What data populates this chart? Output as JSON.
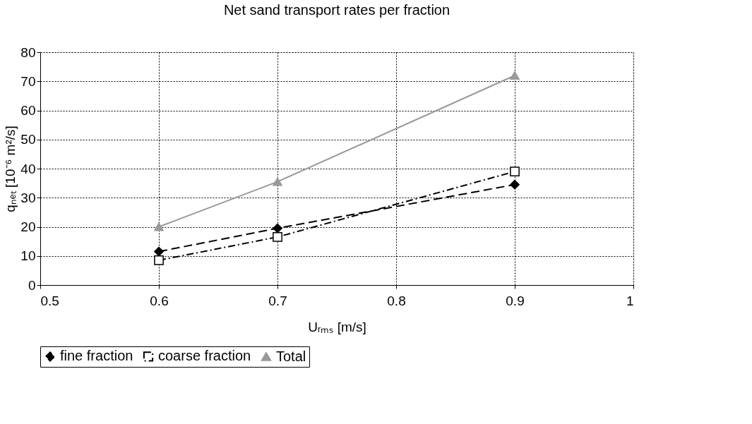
{
  "chart_data": {
    "type": "line",
    "title": "Net sand transport rates per fraction",
    "xlabel": "Uᵣₘₛ [m/s]",
    "ylabel": "qₙₑₜ [10⁻⁶ m²/s]",
    "x": [
      0.6,
      0.7,
      0.9
    ],
    "series": [
      {
        "name": "fine fraction",
        "color": "#000000",
        "values": [
          11.5,
          19.5,
          34.5
        ],
        "marker": "diamond",
        "line_style": "dashed"
      },
      {
        "name": "coarse fraction",
        "color": "#000000",
        "values": [
          8.5,
          16.5,
          39
        ],
        "marker": "square",
        "line_style": "dashdot"
      },
      {
        "name": "Total",
        "color": "#999999",
        "values": [
          20,
          35.5,
          72
        ],
        "marker": "triangle",
        "line_style": "solid"
      }
    ],
    "xlim": [
      0.5,
      1
    ],
    "xticks": [
      0.5,
      0.6,
      0.7,
      0.8,
      0.9,
      1
    ],
    "ylim": [
      0,
      80
    ],
    "yticks": [
      0,
      10,
      20,
      30,
      40,
      50,
      60,
      70,
      80
    ],
    "grid": true,
    "legend": "bottom"
  }
}
